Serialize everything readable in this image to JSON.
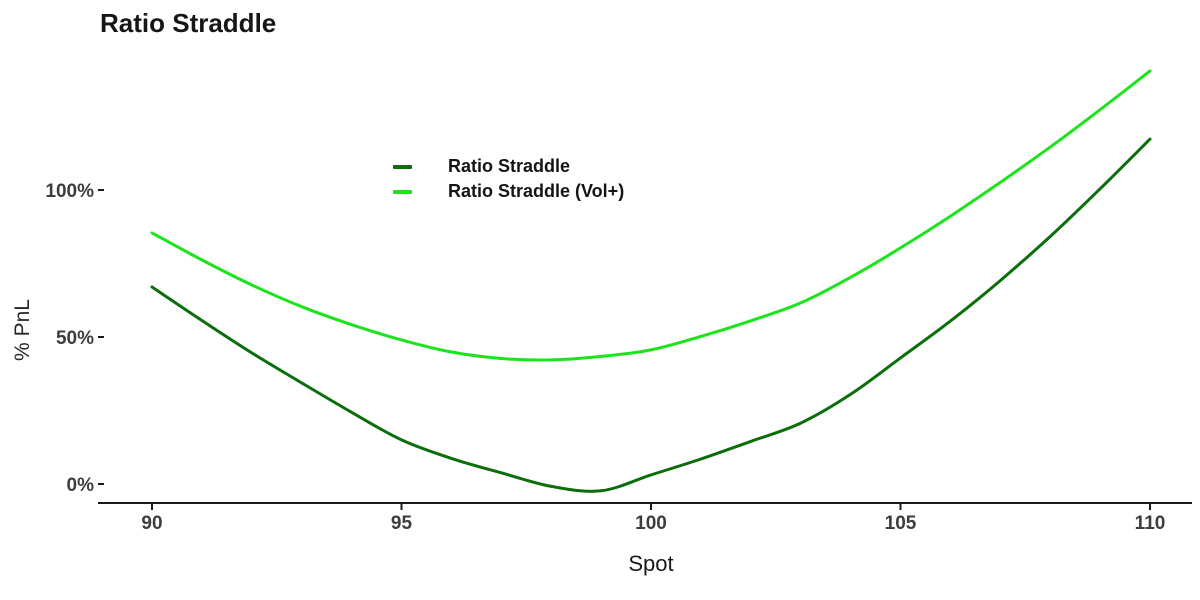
{
  "chart_data": {
    "type": "line",
    "title": "Ratio Straddle",
    "xlabel": "Spot",
    "ylabel": "% PnL",
    "grid": false,
    "legend_position": "inside-top-left",
    "xlim": [
      88.9,
      110.9
    ],
    "ylim": [
      -9,
      150
    ],
    "x_ticks": {
      "values": [
        90,
        95,
        100,
        105,
        110
      ],
      "labels": [
        "90",
        "95",
        "100",
        "105",
        "110"
      ]
    },
    "y_ticks": {
      "values": [
        0,
        50,
        100
      ],
      "labels": [
        "0%",
        "50%",
        "100%"
      ]
    },
    "x": [
      90,
      91,
      92,
      93,
      94,
      95,
      96,
      97,
      98,
      99,
      100,
      101,
      102,
      103,
      104,
      105,
      106,
      107,
      108,
      109,
      110
    ],
    "series": [
      {
        "name": "Ratio Straddle",
        "color": "#0b6e0b",
        "values": [
          67.0,
          55.6,
          44.6,
          34.4,
          24.4,
          15.0,
          8.7,
          3.8,
          -0.8,
          -2.3,
          3.1,
          8.5,
          14.5,
          20.7,
          30.5,
          42.9,
          55.4,
          69.2,
          84.2,
          100.4,
          117.3
        ]
      },
      {
        "name": "Ratio Straddle (Vol+)",
        "color": "#1ce41c",
        "values": [
          85.4,
          76.2,
          67.7,
          60.3,
          54.2,
          49.0,
          44.9,
          42.7,
          42.2,
          43.4,
          45.6,
          50.2,
          55.5,
          61.6,
          70.3,
          80.3,
          91.1,
          102.6,
          114.6,
          127.3,
          140.5
        ]
      }
    ]
  },
  "colors": {
    "background": "#ffffff",
    "axis_line": "#1a1a1a",
    "tick_mark": "#1a1a1a",
    "tick_label": "#3d3d3d",
    "title_text": "#161616",
    "series_dark": "#0b6e0b",
    "series_bright": "#1ce41c"
  }
}
